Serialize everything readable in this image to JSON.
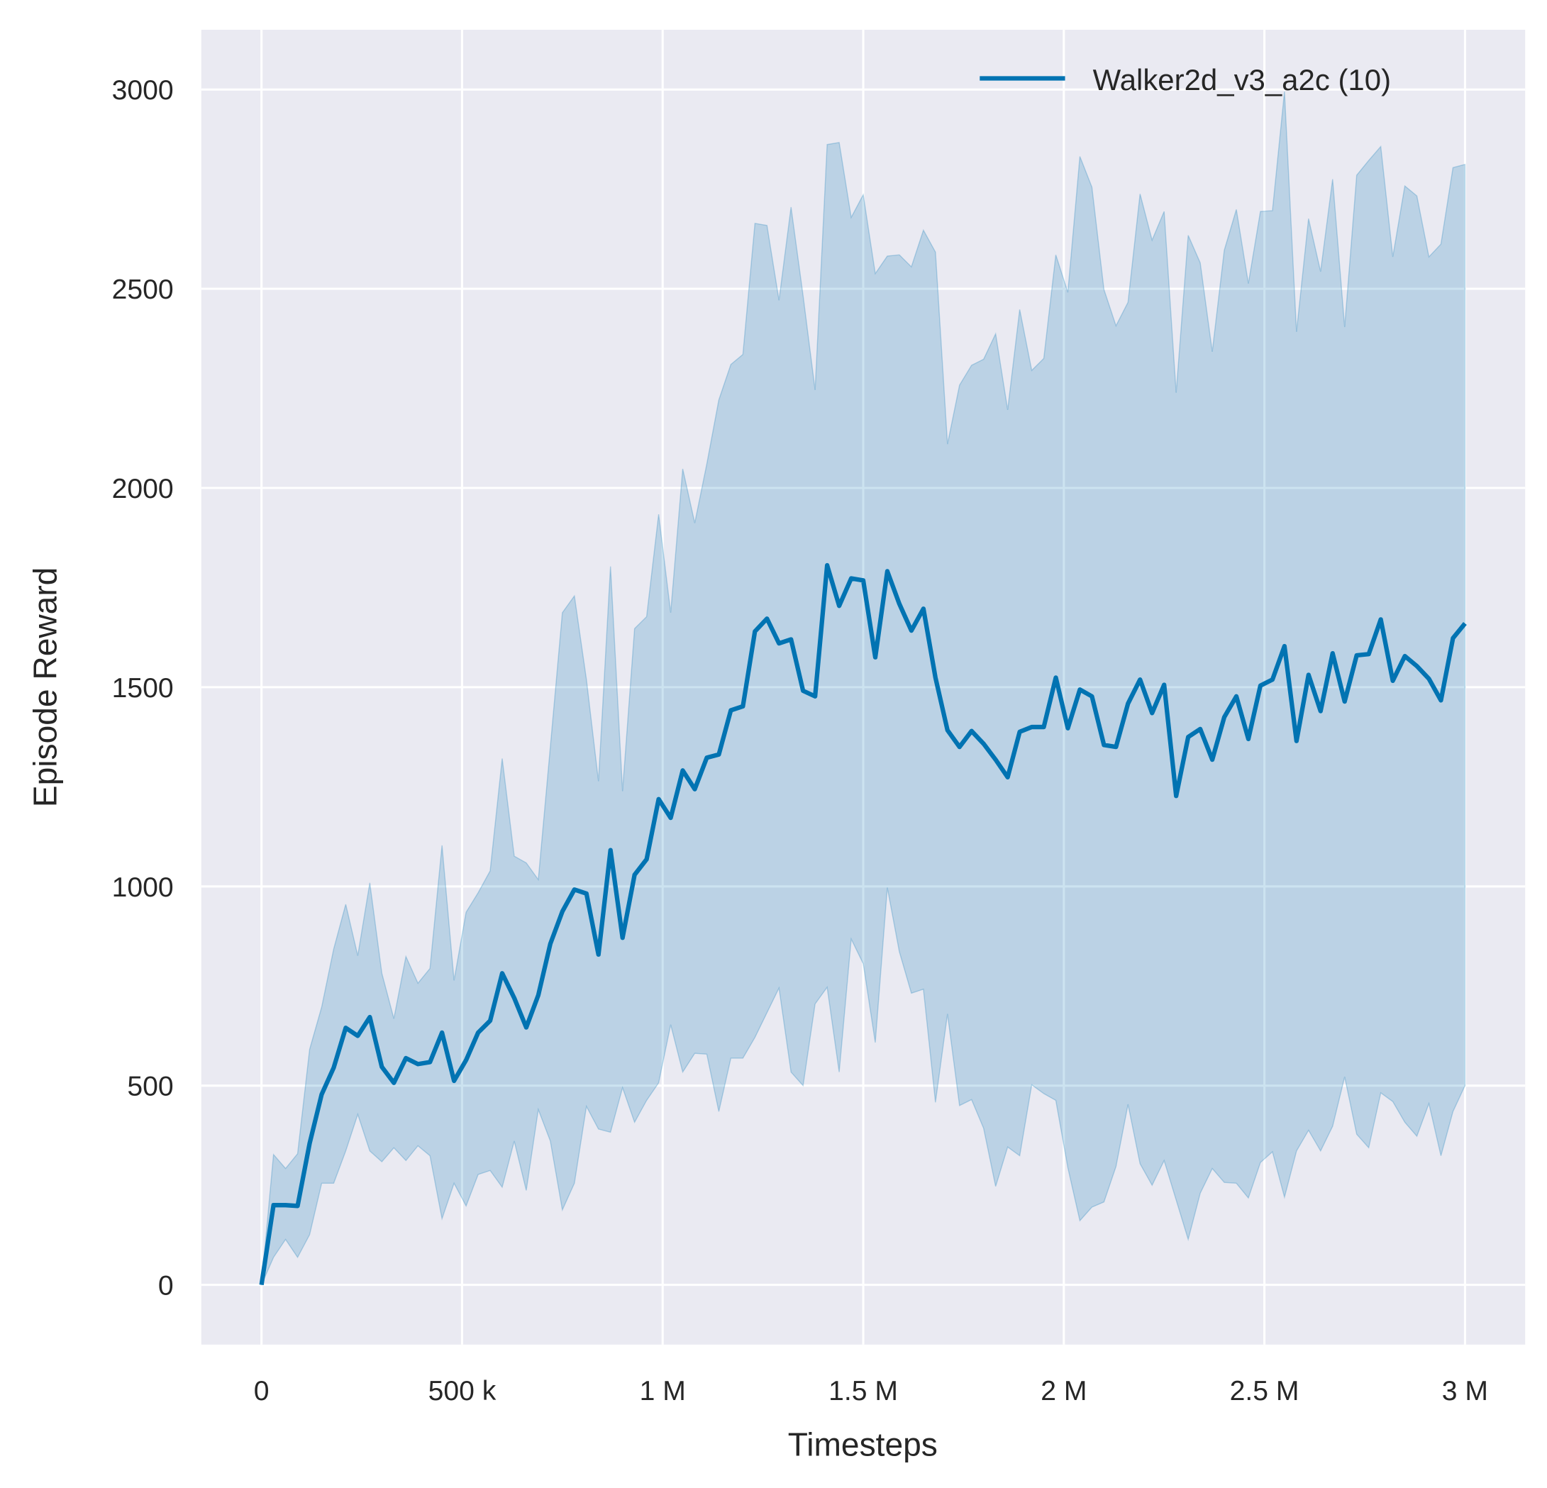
{
  "chart_data": {
    "type": "line",
    "title": "",
    "xlabel": "Timesteps",
    "ylabel": "Episode Reward",
    "xlim": [
      -150000,
      3150000
    ],
    "ylim": [
      -150,
      3150
    ],
    "grid": true,
    "legend_placement": "top-right",
    "xticks": [
      0,
      500000,
      1000000,
      1500000,
      2000000,
      2500000,
      3000000
    ],
    "xtick_labels": [
      "0",
      "500 k",
      "1 M",
      "1.5 M",
      "2 M",
      "2.5 M",
      "3 M"
    ],
    "yticks": [
      0,
      500,
      1000,
      1500,
      2000,
      2500,
      3000
    ],
    "ytick_labels": [
      "0",
      "500",
      "1000",
      "1500",
      "2000",
      "2500",
      "3000"
    ],
    "x_step": 30000,
    "series": [
      {
        "name": "Walker2d_v3_a2c (10)",
        "color": "#0173b2",
        "mean": [
          0,
          200,
          200,
          198,
          355,
          478,
          545,
          645,
          625,
          672,
          547,
          507,
          569,
          554,
          559,
          633,
          512,
          564,
          633,
          663,
          782,
          720,
          646,
          727,
          856,
          937,
          992,
          982,
          829,
          1091,
          871,
          1029,
          1068,
          1219,
          1172,
          1291,
          1244,
          1323,
          1331,
          1442,
          1452,
          1640,
          1672,
          1610,
          1620,
          1491,
          1477,
          1806,
          1704,
          1773,
          1768,
          1575,
          1791,
          1709,
          1642,
          1697,
          1524,
          1392,
          1350,
          1390,
          1358,
          1318,
          1274,
          1388,
          1400,
          1400,
          1524,
          1397,
          1494,
          1477,
          1355,
          1350,
          1459,
          1519,
          1435,
          1506,
          1227,
          1375,
          1395,
          1318,
          1425,
          1477,
          1370,
          1504,
          1519,
          1603,
          1365,
          1531,
          1440,
          1585,
          1464,
          1580,
          1583,
          1670,
          1516,
          1578,
          1553,
          1521,
          1467,
          1623,
          1660
        ],
        "upper": [
          0,
          327,
          292,
          329,
          591,
          697,
          843,
          955,
          826,
          1009,
          782,
          668,
          824,
          757,
          794,
          1103,
          764,
          935,
          984,
          1039,
          1321,
          1076,
          1059,
          1017,
          1350,
          1687,
          1729,
          1519,
          1264,
          1803,
          1239,
          1647,
          1677,
          1934,
          1687,
          2048,
          1912,
          2060,
          2221,
          2310,
          2335,
          2664,
          2659,
          2471,
          2705,
          2483,
          2246,
          2862,
          2867,
          2679,
          2736,
          2538,
          2582,
          2585,
          2555,
          2647,
          2592,
          2110,
          2258,
          2308,
          2323,
          2387,
          2196,
          2448,
          2295,
          2325,
          2585,
          2491,
          2832,
          2755,
          2498,
          2407,
          2466,
          2738,
          2622,
          2694,
          2239,
          2634,
          2565,
          2342,
          2597,
          2699,
          2513,
          2694,
          2696,
          2995,
          2392,
          2676,
          2543,
          2775,
          2404,
          2785,
          2822,
          2857,
          2580,
          2758,
          2733,
          2580,
          2612,
          2804,
          2812
        ],
        "lower": [
          0,
          69,
          114,
          69,
          126,
          255,
          255,
          336,
          428,
          336,
          309,
          344,
          312,
          349,
          324,
          166,
          255,
          198,
          277,
          287,
          245,
          361,
          237,
          440,
          361,
          188,
          255,
          448,
          391,
          383,
          495,
          408,
          463,
          507,
          653,
          534,
          581,
          579,
          435,
          569,
          569,
          621,
          683,
          745,
          534,
          500,
          705,
          747,
          534,
          868,
          806,
          608,
          997,
          836,
          732,
          742,
          458,
          680,
          450,
          465,
          393,
          247,
          346,
          324,
          502,
          480,
          463,
          294,
          161,
          195,
          208,
          297,
          453,
          304,
          250,
          312,
          213,
          114,
          230,
          292,
          257,
          255,
          218,
          307,
          334,
          220,
          336,
          388,
          336,
          398,
          522,
          378,
          344,
          482,
          460,
          408,
          373,
          455,
          324,
          435,
          500
        ]
      }
    ],
    "colors": {
      "background": "#eaeaf2",
      "grid": "#ffffff",
      "band_opacity": 0.2
    }
  }
}
